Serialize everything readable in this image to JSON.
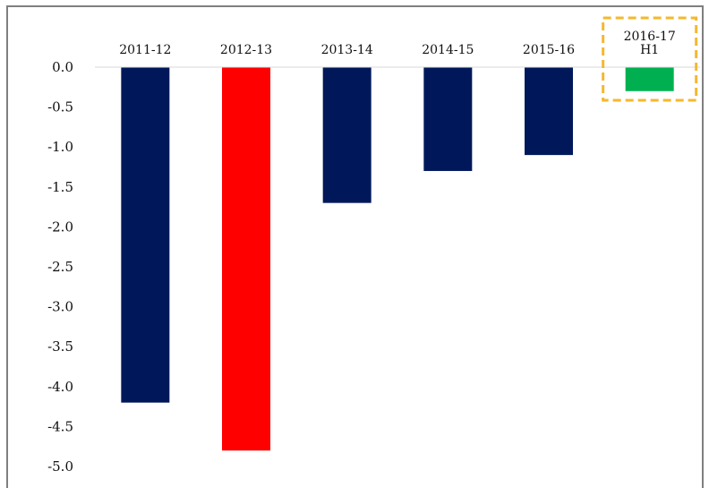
{
  "chart_data": {
    "type": "bar",
    "categories": [
      "2011-12",
      "2012-13",
      "2013-14",
      "2014-15",
      "2015-16",
      [
        "2016-17",
        "H1"
      ]
    ],
    "values": [
      -4.2,
      -4.8,
      -1.7,
      -1.3,
      -1.1,
      -0.3
    ],
    "colors": [
      "#00185a",
      "#ff0000",
      "#00185a",
      "#00185a",
      "#00185a",
      "#00b050"
    ],
    "highlight": {
      "category_index": 5,
      "border_color": "#f5b82e",
      "style": "dashed"
    },
    "ylim": [
      -5.0,
      0.0
    ],
    "yticks": [
      "0.0",
      "-0.5",
      "-1.0",
      "-1.5",
      "-2.0",
      "-2.5",
      "-3.0",
      "-3.5",
      "-4.0",
      "-4.5",
      "-5.0"
    ],
    "category_position": "top",
    "grid": false,
    "frame_color": "#7f7f7f"
  }
}
